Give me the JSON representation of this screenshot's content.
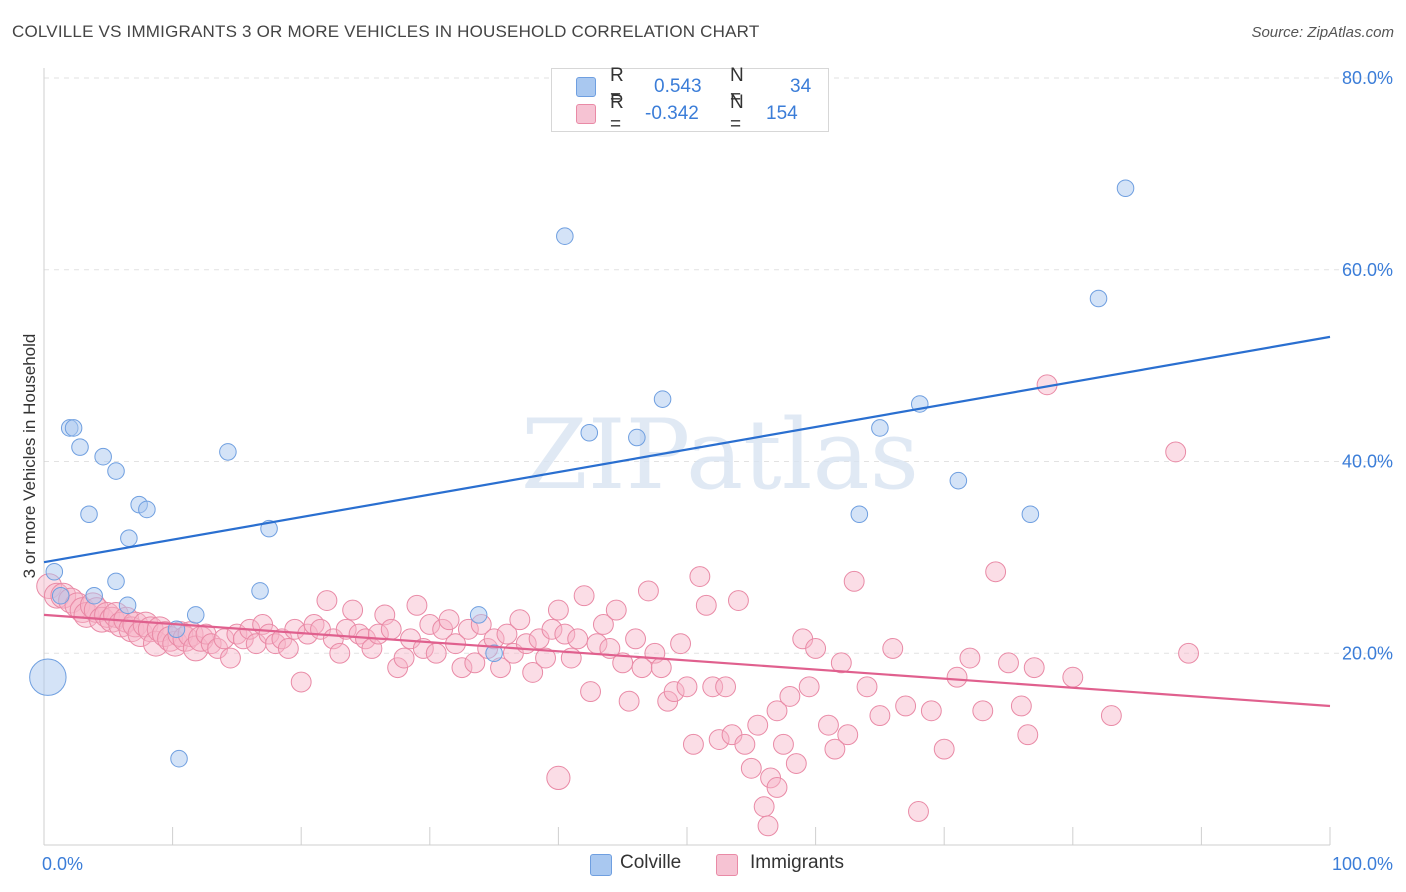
{
  "title": "COLVILLE VS IMMIGRANTS 3 OR MORE VEHICLES IN HOUSEHOLD CORRELATION CHART",
  "source": "Source: ZipAtlas.com",
  "colors": {
    "colville_fill": "#a9c8f0",
    "colville_stroke": "#6f9fe0",
    "colville_line": "#2a6fd0",
    "immigrants_fill": "#f6b4c8",
    "immigrants_stroke": "#e98aa6",
    "immigrants_line": "#e0608e",
    "text_blue": "#3b7dd8"
  },
  "legend": {
    "r_label": "R =",
    "n_label": "N =",
    "rows": [
      {
        "series": "Colville",
        "r": "0.543",
        "n": "34"
      },
      {
        "series": "Immigrants",
        "r": "-0.342",
        "n": "154"
      }
    ]
  },
  "bottom_legend": {
    "colville": "Colville",
    "immigrants": "Immigrants"
  },
  "watermark": "ZIPatlas",
  "chart_data": {
    "type": "scatter",
    "xlabel": "",
    "ylabel": "3 or more Vehicles in Household",
    "xlim": [
      0,
      100
    ],
    "ylim": [
      0,
      80
    ],
    "x_tick_labels": [
      "0.0%",
      "100.0%"
    ],
    "y_tick_labels": [
      "20.0%",
      "40.0%",
      "60.0%",
      "80.0%"
    ],
    "y_ticks": [
      20,
      40,
      60,
      80
    ],
    "series": [
      {
        "name": "Colville",
        "r": 0.543,
        "n": 34,
        "trend": {
          "x": [
            0,
            100
          ],
          "y": [
            29.5,
            53.0
          ]
        },
        "points": [
          [
            0.3,
            17.5,
            2.2
          ],
          [
            0.8,
            28.5,
            1
          ],
          [
            1.3,
            26,
            1
          ],
          [
            2.0,
            43.5,
            1
          ],
          [
            2.3,
            43.5,
            1
          ],
          [
            2.8,
            41.5,
            1
          ],
          [
            3.5,
            34.5,
            1
          ],
          [
            3.9,
            26,
            1
          ],
          [
            4.6,
            40.5,
            1
          ],
          [
            5.6,
            39,
            1
          ],
          [
            5.6,
            27.5,
            1
          ],
          [
            6.5,
            25,
            1
          ],
          [
            6.6,
            32,
            1
          ],
          [
            7.4,
            35.5,
            1
          ],
          [
            8.0,
            35,
            1
          ],
          [
            10.3,
            22.5,
            1
          ],
          [
            10.5,
            9,
            1
          ],
          [
            11.8,
            24,
            1
          ],
          [
            14.3,
            41,
            1
          ],
          [
            16.8,
            26.5,
            1
          ],
          [
            17.5,
            33,
            1
          ],
          [
            33.8,
            24,
            1
          ],
          [
            35.0,
            20,
            1
          ],
          [
            40.5,
            63.5,
            1
          ],
          [
            42.4,
            43,
            1
          ],
          [
            46.1,
            42.5,
            1
          ],
          [
            48.1,
            46.5,
            1
          ],
          [
            63.4,
            34.5,
            1
          ],
          [
            65.0,
            43.5,
            1
          ],
          [
            68.1,
            46,
            1
          ],
          [
            71.1,
            38,
            1
          ],
          [
            76.7,
            34.5,
            1
          ],
          [
            82.0,
            57,
            1
          ],
          [
            84.1,
            68.5,
            1
          ]
        ]
      },
      {
        "name": "Immigrants",
        "r": -0.342,
        "n": 154,
        "trend": {
          "x": [
            0,
            100
          ],
          "y": [
            24.0,
            14.5
          ]
        },
        "points": [
          [
            0.4,
            27,
            1.5
          ],
          [
            1.0,
            26,
            1.5
          ],
          [
            1.5,
            26,
            1.5
          ],
          [
            2.1,
            25.5,
            1.5
          ],
          [
            2.6,
            25,
            1.5
          ],
          [
            3.0,
            24.5,
            1.5
          ],
          [
            3.3,
            24,
            1.5
          ],
          [
            3.8,
            25,
            1.5
          ],
          [
            4.1,
            24.5,
            1.5
          ],
          [
            4.5,
            23.5,
            1.5
          ],
          [
            4.9,
            24,
            1.5
          ],
          [
            5.3,
            23.5,
            1.5
          ],
          [
            5.6,
            24,
            1.5
          ],
          [
            6.0,
            23,
            1.5
          ],
          [
            6.4,
            23.5,
            1.5
          ],
          [
            6.8,
            22.5,
            1.5
          ],
          [
            7.1,
            23,
            1.5
          ],
          [
            7.5,
            22,
            1.5
          ],
          [
            7.9,
            23,
            1.5
          ],
          [
            8.3,
            22.5,
            1.5
          ],
          [
            8.7,
            21,
            1.5
          ],
          [
            9.0,
            22.5,
            1.5
          ],
          [
            9.4,
            22,
            1.5
          ],
          [
            9.8,
            21.5,
            1.5
          ],
          [
            10.2,
            21,
            1.5
          ],
          [
            10.6,
            22,
            1.5
          ],
          [
            11.0,
            21.5,
            1.5
          ],
          [
            11.4,
            22,
            1.5
          ],
          [
            11.8,
            20.5,
            1.5
          ],
          [
            12.2,
            21.5,
            1.5
          ],
          [
            12.6,
            22,
            1.2
          ],
          [
            13.0,
            21,
            1.2
          ],
          [
            13.5,
            20.5,
            1.2
          ],
          [
            14.0,
            21.5,
            1.2
          ],
          [
            14.5,
            19.5,
            1.2
          ],
          [
            15.0,
            22,
            1.2
          ],
          [
            15.5,
            21.5,
            1.2
          ],
          [
            16.0,
            22.5,
            1.2
          ],
          [
            16.5,
            21,
            1.2
          ],
          [
            17.0,
            23,
            1.2
          ],
          [
            17.5,
            22,
            1.2
          ],
          [
            18.0,
            21,
            1.2
          ],
          [
            18.5,
            21.5,
            1.2
          ],
          [
            19.0,
            20.5,
            1.2
          ],
          [
            19.5,
            22.5,
            1.2
          ],
          [
            20.0,
            17,
            1.2
          ],
          [
            20.5,
            22,
            1.2
          ],
          [
            21.0,
            23,
            1.2
          ],
          [
            21.5,
            22.5,
            1.2
          ],
          [
            22.0,
            25.5,
            1.2
          ],
          [
            22.5,
            21.5,
            1.2
          ],
          [
            23.0,
            20,
            1.2
          ],
          [
            23.5,
            22.5,
            1.2
          ],
          [
            24.0,
            24.5,
            1.2
          ],
          [
            24.5,
            22,
            1.2
          ],
          [
            25.0,
            21.5,
            1.2
          ],
          [
            25.5,
            20.5,
            1.2
          ],
          [
            26.0,
            22,
            1.2
          ],
          [
            26.5,
            24,
            1.2
          ],
          [
            27.0,
            22.5,
            1.2
          ],
          [
            27.5,
            18.5,
            1.2
          ],
          [
            28.0,
            19.5,
            1.2
          ],
          [
            28.5,
            21.5,
            1.2
          ],
          [
            29.0,
            25,
            1.2
          ],
          [
            29.5,
            20.5,
            1.2
          ],
          [
            30.0,
            23,
            1.2
          ],
          [
            30.5,
            20,
            1.2
          ],
          [
            31.0,
            22.5,
            1.2
          ],
          [
            31.5,
            23.5,
            1.2
          ],
          [
            32.0,
            21,
            1.2
          ],
          [
            32.5,
            18.5,
            1.2
          ],
          [
            33.0,
            22.5,
            1.2
          ],
          [
            33.5,
            19,
            1.2
          ],
          [
            34.0,
            23,
            1.2
          ],
          [
            34.5,
            20.5,
            1.2
          ],
          [
            35.0,
            21.5,
            1.2
          ],
          [
            35.5,
            18.5,
            1.2
          ],
          [
            36.0,
            22,
            1.2
          ],
          [
            36.5,
            20,
            1.2
          ],
          [
            37.0,
            23.5,
            1.2
          ],
          [
            37.5,
            21,
            1.2
          ],
          [
            38.0,
            18,
            1.2
          ],
          [
            38.5,
            21.5,
            1.2
          ],
          [
            39.0,
            19.5,
            1.2
          ],
          [
            39.5,
            22.5,
            1.2
          ],
          [
            40.0,
            24.5,
            1.2
          ],
          [
            40.5,
            22,
            1.2
          ],
          [
            41.0,
            19.5,
            1.2
          ],
          [
            41.5,
            21.5,
            1.2
          ],
          [
            42.0,
            26,
            1.2
          ],
          [
            42.5,
            16,
            1.2
          ],
          [
            43.0,
            21,
            1.2
          ],
          [
            43.5,
            23,
            1.2
          ],
          [
            44.0,
            20.5,
            1.2
          ],
          [
            44.5,
            24.5,
            1.2
          ],
          [
            45.0,
            19,
            1.2
          ],
          [
            45.5,
            15,
            1.2
          ],
          [
            46.0,
            21.5,
            1.2
          ],
          [
            46.5,
            18.5,
            1.2
          ],
          [
            47.0,
            26.5,
            1.2
          ],
          [
            47.5,
            20,
            1.2
          ],
          [
            48.0,
            18.5,
            1.2
          ],
          [
            48.5,
            15,
            1.2
          ],
          [
            49.0,
            16,
            1.2
          ],
          [
            49.5,
            21,
            1.2
          ],
          [
            50.0,
            16.5,
            1.2
          ],
          [
            50.5,
            10.5,
            1.2
          ],
          [
            51.0,
            28,
            1.2
          ],
          [
            51.5,
            25,
            1.2
          ],
          [
            52.0,
            16.5,
            1.2
          ],
          [
            52.5,
            11,
            1.2
          ],
          [
            53.0,
            16.5,
            1.2
          ],
          [
            53.5,
            11.5,
            1.2
          ],
          [
            54.0,
            25.5,
            1.2
          ],
          [
            54.5,
            10.5,
            1.2
          ],
          [
            55.0,
            8,
            1.2
          ],
          [
            55.5,
            12.5,
            1.2
          ],
          [
            56.0,
            4,
            1.2
          ],
          [
            56.5,
            7,
            1.2
          ],
          [
            57.0,
            14,
            1.2
          ],
          [
            57.5,
            10.5,
            1.2
          ],
          [
            58.0,
            15.5,
            1.2
          ],
          [
            58.5,
            8.5,
            1.2
          ],
          [
            59.0,
            21.5,
            1.2
          ],
          [
            59.5,
            16.5,
            1.2
          ],
          [
            60.0,
            20.5,
            1.2
          ],
          [
            61.0,
            12.5,
            1.2
          ],
          [
            61.5,
            10,
            1.2
          ],
          [
            62.0,
            19,
            1.2
          ],
          [
            62.5,
            11.5,
            1.2
          ],
          [
            63.0,
            27.5,
            1.2
          ],
          [
            64.0,
            16.5,
            1.2
          ],
          [
            65.0,
            13.5,
            1.2
          ],
          [
            66.0,
            20.5,
            1.2
          ],
          [
            67.0,
            14.5,
            1.2
          ],
          [
            68.0,
            3.5,
            1.2
          ],
          [
            69.0,
            14,
            1.2
          ],
          [
            70.0,
            10,
            1.2
          ],
          [
            71.0,
            17.5,
            1.2
          ],
          [
            72.0,
            19.5,
            1.2
          ],
          [
            73.0,
            14,
            1.2
          ],
          [
            74.0,
            28.5,
            1.2
          ],
          [
            75.0,
            19,
            1.2
          ],
          [
            76.0,
            14.5,
            1.2
          ],
          [
            76.5,
            11.5,
            1.2
          ],
          [
            77.0,
            18.5,
            1.2
          ],
          [
            78.0,
            48,
            1.2
          ],
          [
            80.0,
            17.5,
            1.2
          ],
          [
            83.0,
            13.5,
            1.2
          ],
          [
            88.0,
            41,
            1.2
          ],
          [
            89.0,
            20,
            1.2
          ],
          [
            40.0,
            7,
            1.4
          ],
          [
            56.3,
            2,
            1.2
          ],
          [
            57.0,
            6,
            1.2
          ]
        ]
      }
    ]
  }
}
